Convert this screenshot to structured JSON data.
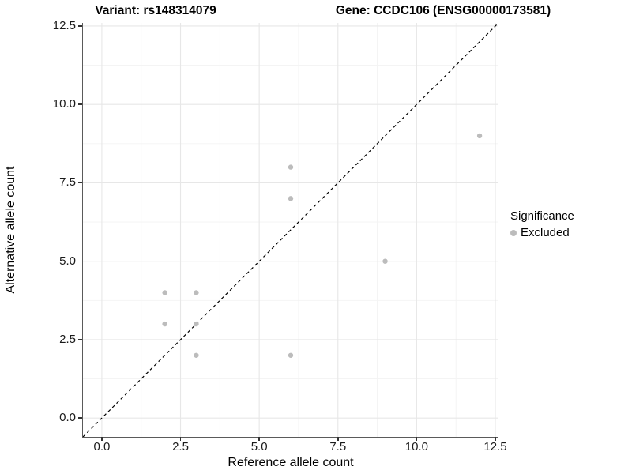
{
  "chart_data": {
    "type": "scatter",
    "titles": {
      "left": "Variant: rs148314079",
      "right": "Gene: CCDC106 (ENSG00000173581)"
    },
    "xlabel": "Reference allele count",
    "ylabel": "Alternative allele count",
    "xlim": [
      -0.6,
      12.6
    ],
    "ylim": [
      -0.6,
      12.6
    ],
    "x_ticks": {
      "values": [
        0,
        2.5,
        5,
        7.5,
        10,
        12.5
      ],
      "labels": [
        "0.0",
        "2.5",
        "5.0",
        "7.5",
        "10.0",
        "12.5"
      ]
    },
    "y_ticks": {
      "values": [
        0,
        2.5,
        5,
        7.5,
        10,
        12.5
      ],
      "labels": [
        "0.0",
        "2.5",
        "5.0",
        "7.5",
        "10.0",
        "12.5"
      ]
    },
    "minor_ticks": [
      1.25,
      3.75,
      6.25,
      8.75,
      11.25
    ],
    "grid": true,
    "legend_position": "right",
    "series": [
      {
        "name": "Excluded",
        "color": "#bcbcbc",
        "points": [
          {
            "x": 2,
            "y": 3
          },
          {
            "x": 2,
            "y": 4
          },
          {
            "x": 3,
            "y": 2
          },
          {
            "x": 3,
            "y": 3
          },
          {
            "x": 3,
            "y": 4
          },
          {
            "x": 6,
            "y": 2
          },
          {
            "x": 6,
            "y": 7
          },
          {
            "x": 6,
            "y": 8
          },
          {
            "x": 9,
            "y": 5
          },
          {
            "x": 12,
            "y": 9
          }
        ]
      }
    ],
    "reference_line": {
      "equation": "y = x",
      "style": "dashed",
      "color": "#000000"
    },
    "legend": {
      "title": "Significance",
      "entries": [
        {
          "label": "Excluded",
          "color": "#bcbcbc"
        }
      ]
    }
  },
  "style_colors": {
    "grid_major": "#e7e7e7",
    "grid_minor": "#f3f3f3",
    "axis_line": "#5a5a5a",
    "tick_mark": "#333333"
  }
}
